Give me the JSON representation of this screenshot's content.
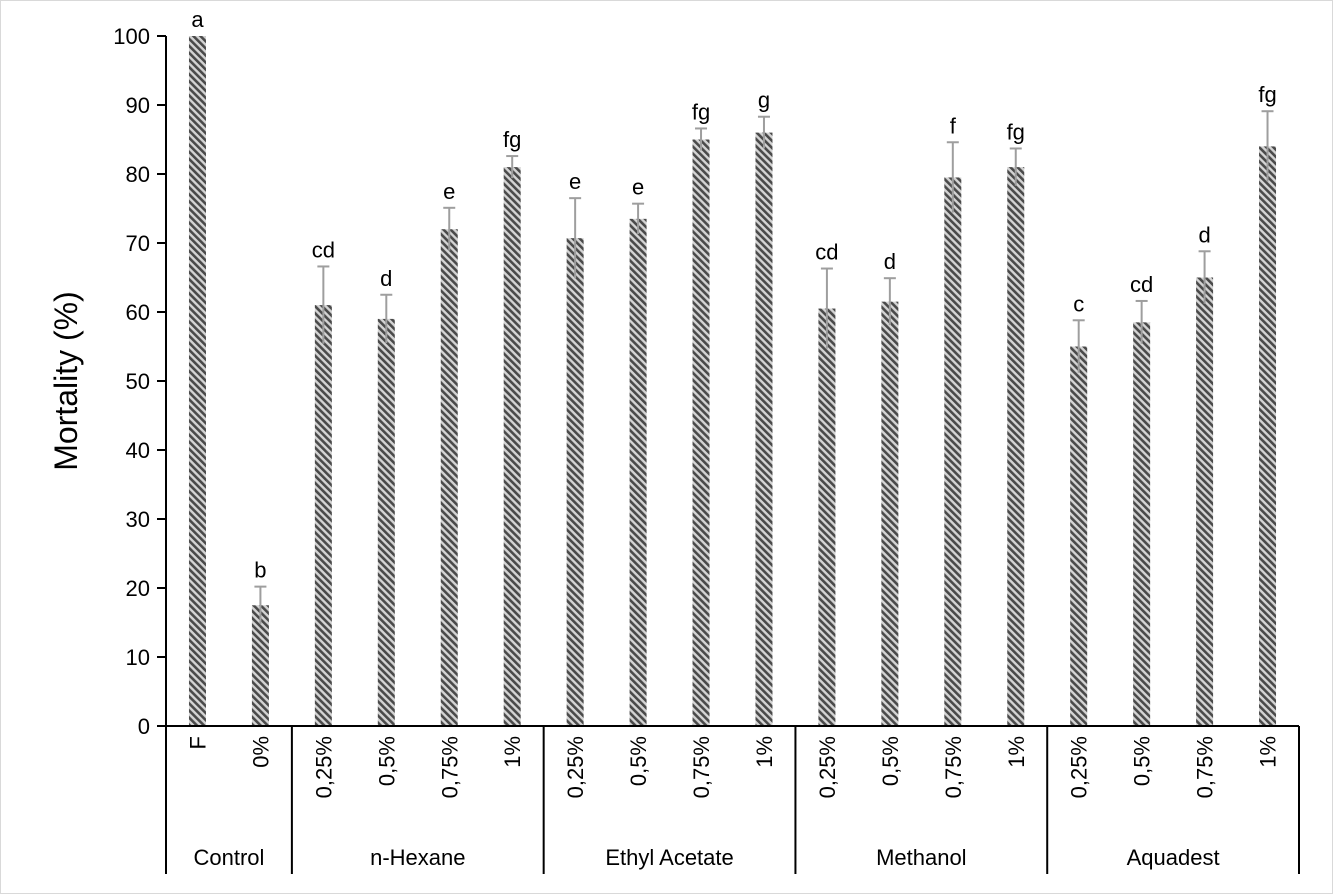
{
  "chart_data": {
    "type": "bar",
    "title": "",
    "xlabel": "",
    "ylabel": "Mortality (%)",
    "ylim": [
      0,
      100
    ],
    "yticks": [
      0,
      10,
      20,
      30,
      40,
      50,
      60,
      70,
      80,
      90,
      100
    ],
    "grid": false,
    "legend": "none",
    "groups": [
      {
        "name": "Control",
        "categories": [
          "F",
          "0%"
        ]
      },
      {
        "name": "n-Hexane",
        "categories": [
          "0,25%",
          "0,5%",
          "0,75%",
          "1%"
        ]
      },
      {
        "name": "Ethyl Acetate",
        "categories": [
          "0,25%",
          "0,5%",
          "0,75%",
          "1%"
        ]
      },
      {
        "name": "Methanol",
        "categories": [
          "0,25%",
          "0,5%",
          "0,75%",
          "1%"
        ]
      },
      {
        "name": "Aquadest",
        "categories": [
          "0,25%",
          "0,5%",
          "0,75%",
          "1%"
        ]
      }
    ],
    "bars": [
      {
        "value": 100,
        "error": 0,
        "label": "a"
      },
      {
        "value": 17.5,
        "error": 2.7,
        "label": "b"
      },
      {
        "value": 61,
        "error": 5.6,
        "label": "cd"
      },
      {
        "value": 59,
        "error": 3.5,
        "label": "d"
      },
      {
        "value": 72,
        "error": 3.1,
        "label": "e"
      },
      {
        "value": 81,
        "error": 1.6,
        "label": "fg"
      },
      {
        "value": 70.7,
        "error": 5.8,
        "label": "e"
      },
      {
        "value": 73.5,
        "error": 2.2,
        "label": "e"
      },
      {
        "value": 85,
        "error": 1.6,
        "label": "fg"
      },
      {
        "value": 86,
        "error": 2.3,
        "label": "g"
      },
      {
        "value": 60.5,
        "error": 5.8,
        "label": "cd"
      },
      {
        "value": 61.5,
        "error": 3.4,
        "label": "d"
      },
      {
        "value": 79.5,
        "error": 5.1,
        "label": "f"
      },
      {
        "value": 81,
        "error": 2.7,
        "label": "fg"
      },
      {
        "value": 55,
        "error": 3.8,
        "label": "c"
      },
      {
        "value": 58.5,
        "error": 3.1,
        "label": "cd"
      },
      {
        "value": 65,
        "error": 3.8,
        "label": "d"
      },
      {
        "value": 84,
        "error": 5.1,
        "label": "fg"
      }
    ],
    "colors": {
      "bar_stripe_dark": "#4a4a4a",
      "bar_stripe_light": "#d4d4d4",
      "error_bar": "#9e9e9e",
      "axis": "#000000"
    }
  }
}
